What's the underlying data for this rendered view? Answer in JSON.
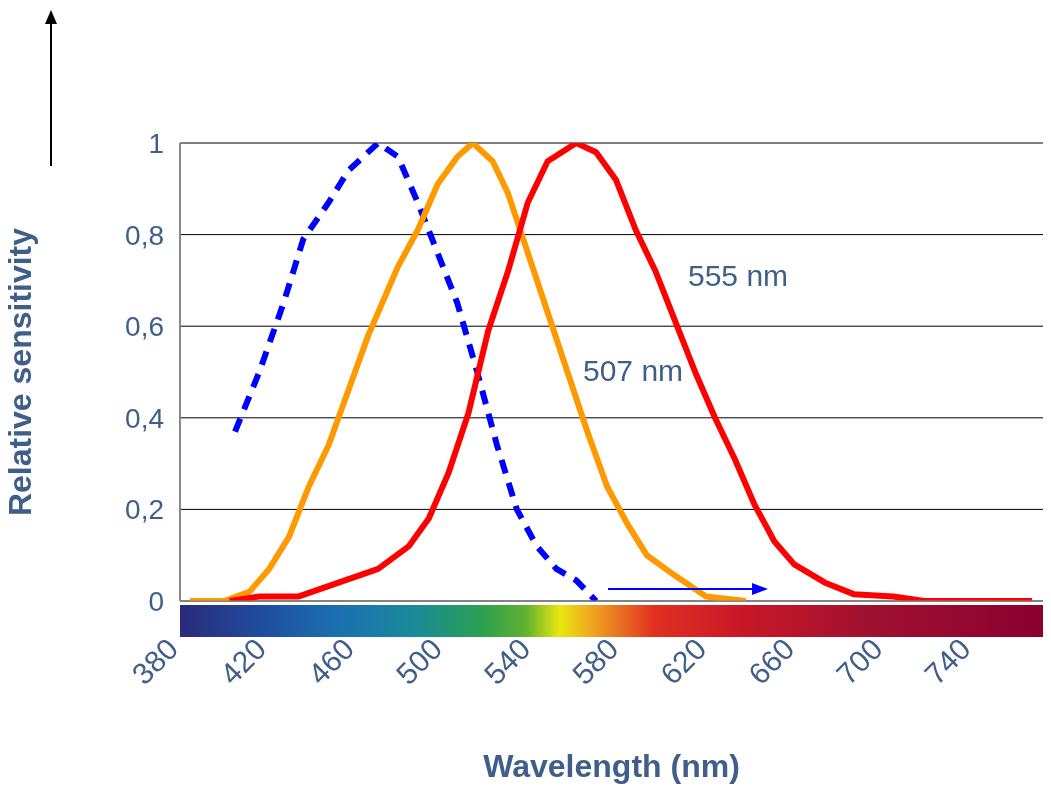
{
  "chart_data": {
    "type": "line",
    "xlabel": "Wavelength (nm)",
    "ylabel": "Relative sensitivity",
    "xlim": [
      380,
      772
    ],
    "xticks": [
      380,
      420,
      460,
      500,
      540,
      580,
      620,
      660,
      700,
      740
    ],
    "ylim": [
      0,
      1
    ],
    "yticks": [
      {
        "value": 0,
        "label": "0"
      },
      {
        "value": 0.2,
        "label": "0,2"
      },
      {
        "value": 0.4,
        "label": "0,4"
      },
      {
        "value": 0.6,
        "label": "0,6"
      },
      {
        "value": 0.8,
        "label": "0,8"
      },
      {
        "value": 1,
        "label": "1"
      }
    ],
    "grid": "y",
    "marker": "none",
    "series": [
      {
        "color": "#0000ff",
        "line_style": "dashed",
        "x": [
          405,
          416,
          427,
          436,
          447.5,
          456.5,
          470,
          479,
          488,
          497,
          506,
          515,
          524,
          533,
          542,
          551,
          560,
          569
        ],
        "values": [
          0.37,
          0.5,
          0.65,
          0.79,
          0.87,
          0.94,
          1,
          0.97,
          0.87,
          0.76,
          0.65,
          0.5,
          0.34,
          0.2,
          0.12,
          0.07,
          0.045,
          0
        ]
      },
      {
        "color": "#ff9900",
        "line_style": "solid",
        "x": [
          384.5,
          400,
          411.5,
          420.5,
          429.5,
          438.5,
          447.5,
          456.5,
          465.5,
          479,
          488,
          497,
          506,
          513,
          522,
          529,
          538,
          547,
          556,
          565,
          574,
          583,
          592,
          605,
          619,
          637
        ],
        "values": [
          0,
          0,
          0.02,
          0.07,
          0.14,
          0.25,
          0.34,
          0.46,
          0.58,
          0.73,
          0.81,
          0.91,
          0.97,
          1,
          0.96,
          0.89,
          0.76,
          0.63,
          0.5,
          0.37,
          0.25,
          0.17,
          0.1,
          0.055,
          0.01,
          0
        ]
      },
      {
        "color": "#ff0000",
        "line_style": "solid",
        "x": [
          402.5,
          416,
          434,
          452,
          470,
          484,
          493,
          502,
          511,
          520,
          529,
          538,
          547,
          560,
          569,
          578,
          587,
          596,
          605,
          614,
          623,
          632,
          641,
          650,
          659,
          673,
          686,
          704,
          718,
          767
        ],
        "values": [
          0,
          0.01,
          0.01,
          0.04,
          0.07,
          0.12,
          0.18,
          0.28,
          0.41,
          0.59,
          0.72,
          0.87,
          0.96,
          1,
          0.98,
          0.92,
          0.81,
          0.72,
          0.61,
          0.5,
          0.4,
          0.31,
          0.21,
          0.13,
          0.08,
          0.04,
          0.015,
          0.01,
          0,
          0
        ]
      }
    ],
    "annotations": [
      "555 nm",
      "507 nm"
    ]
  }
}
